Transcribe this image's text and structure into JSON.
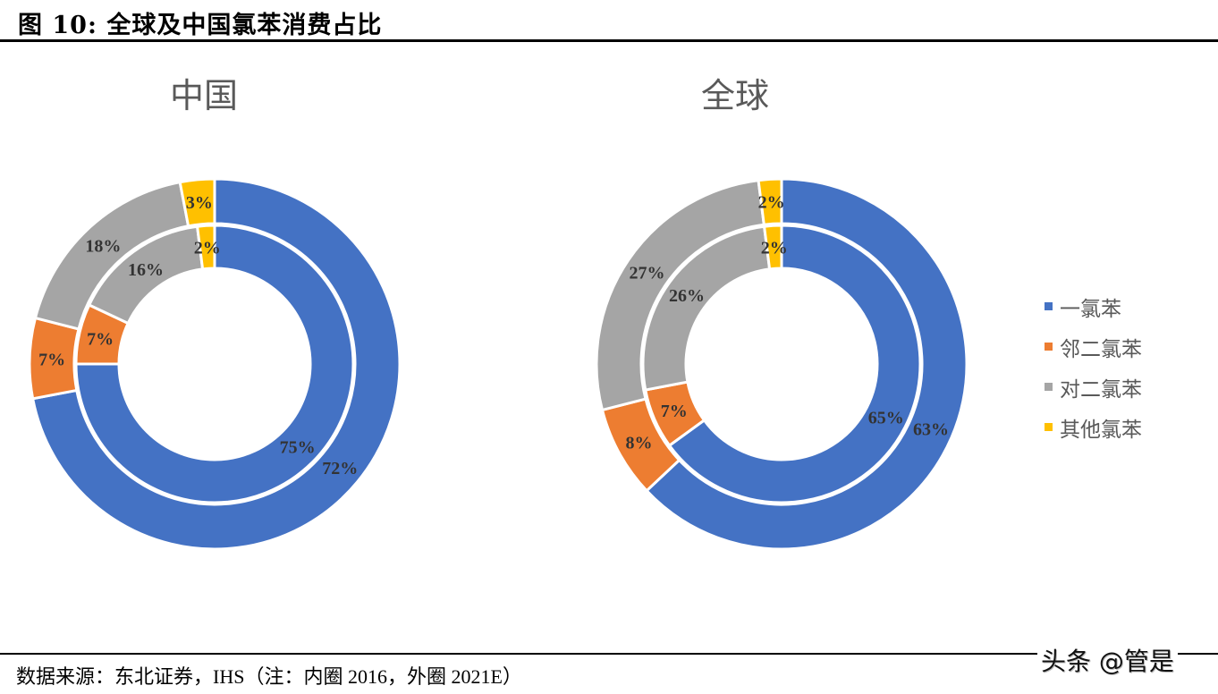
{
  "figure": {
    "title": "图 10: 全球及中国氯苯消费占比",
    "source": "数据来源：东北证券，IHS（注：内圈 2016，外圈 2021E）",
    "watermark": "头条 @管是"
  },
  "legend": {
    "items": [
      {
        "label": "一氯苯",
        "color": "#4472C4"
      },
      {
        "label": "邻二氯苯",
        "color": "#ED7D31"
      },
      {
        "label": "对二氯苯",
        "color": "#A5A5A5"
      },
      {
        "label": "其他氯苯",
        "color": "#FFC000"
      }
    ]
  },
  "chart_data": [
    {
      "type": "pie",
      "subtype": "donut-nested",
      "title": "中国",
      "categories": [
        "一氯苯",
        "邻二氯苯",
        "对二氯苯",
        "其他氯苯"
      ],
      "colors": [
        "#4472C4",
        "#ED7D31",
        "#A5A5A5",
        "#FFC000"
      ],
      "series": [
        {
          "name": "内圈 2016",
          "values": [
            75,
            7,
            16,
            2
          ],
          "labels": [
            "75%",
            "7%",
            "16%",
            "2%"
          ]
        },
        {
          "name": "外圈 2021E",
          "values": [
            72,
            7,
            18,
            3
          ],
          "labels": [
            "72%",
            "7%",
            "18%",
            "3%"
          ]
        }
      ],
      "legend_position": "right"
    },
    {
      "type": "pie",
      "subtype": "donut-nested",
      "title": "全球",
      "categories": [
        "一氯苯",
        "邻二氯苯",
        "对二氯苯",
        "其他氯苯"
      ],
      "colors": [
        "#4472C4",
        "#ED7D31",
        "#A5A5A5",
        "#FFC000"
      ],
      "series": [
        {
          "name": "内圈 2016",
          "values": [
            65,
            7,
            26,
            2
          ],
          "labels": [
            "65%",
            "7%",
            "26%",
            "2%"
          ]
        },
        {
          "name": "外圈 2021E",
          "values": [
            63,
            8,
            27,
            2
          ],
          "labels": [
            "63%",
            "8%",
            "27%",
            "2%"
          ]
        }
      ],
      "legend_position": "right"
    }
  ]
}
